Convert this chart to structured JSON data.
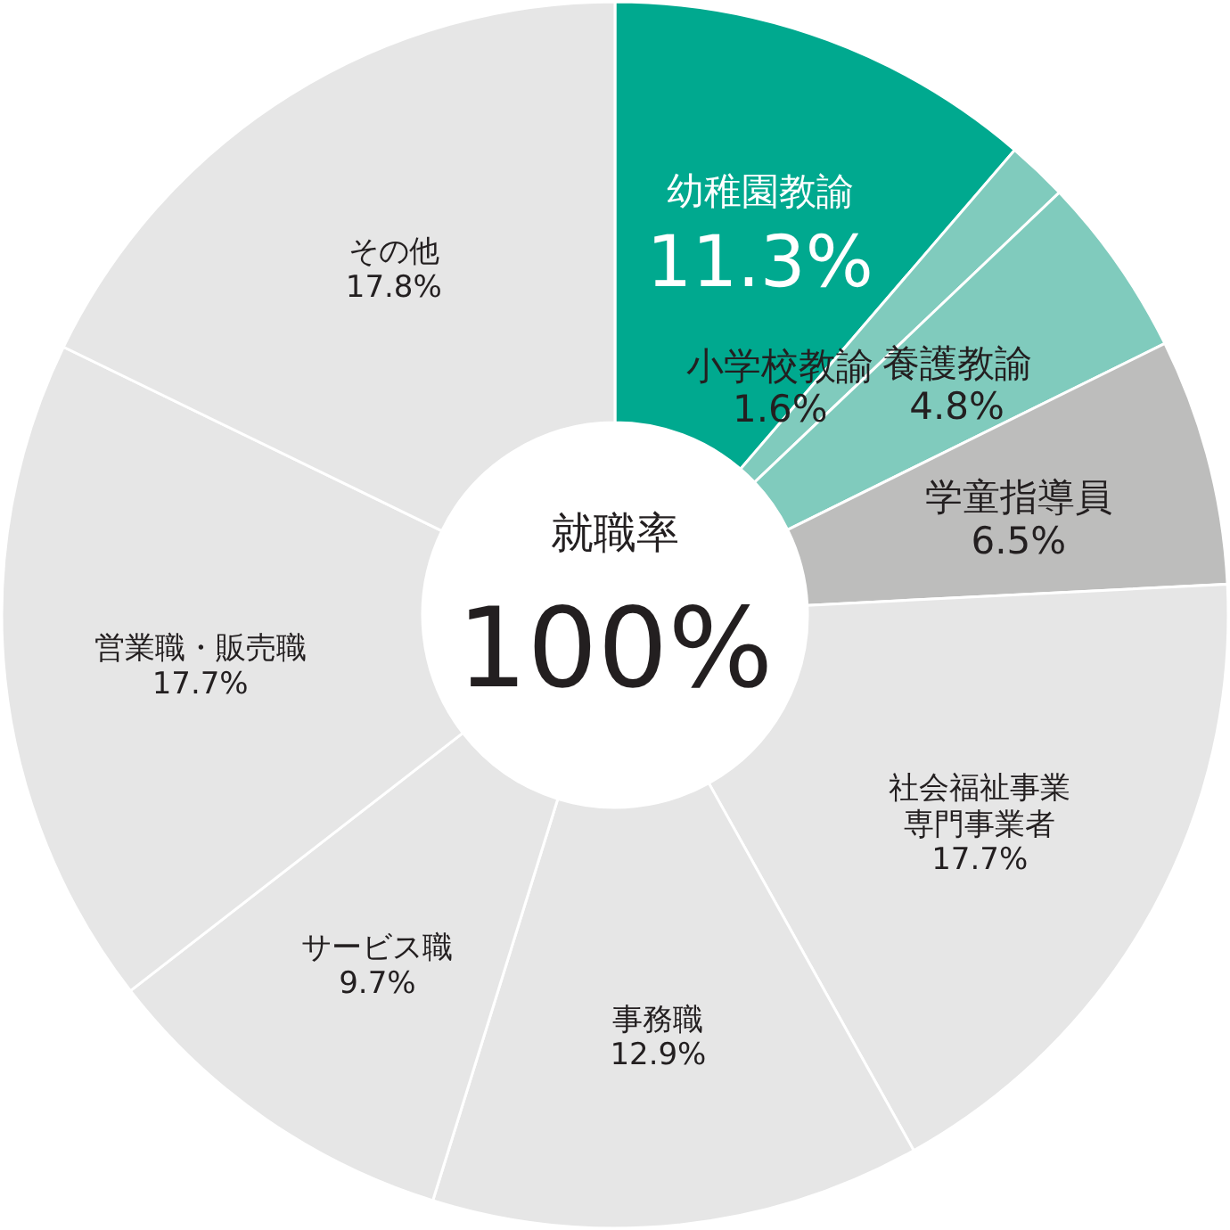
{
  "chart_data": {
    "type": "donut",
    "title": "就職率",
    "annotations": [
      "100%"
    ],
    "categories": [
      "幼稚園教諭",
      "小学校教諭",
      "養護教諭",
      "学童指導員",
      "社会福祉事業専門事業者",
      "事務職",
      "サービス職",
      "営業職・販売職",
      "その他"
    ],
    "values": [
      11.3,
      1.6,
      4.8,
      6.5,
      17.7,
      12.9,
      9.7,
      17.7,
      17.8
    ],
    "value_labels": [
      "11.3%",
      "1.6%",
      "4.8%",
      "6.5%",
      "17.7%",
      "12.9%",
      "9.7%",
      "17.7%",
      "17.8%"
    ],
    "colors": [
      "#00a98f",
      "#80cbbd",
      "#80cbbd",
      "#bdbdbc",
      "#e6e6e6",
      "#e6e6e6",
      "#e6e6e6",
      "#e6e6e6",
      "#e6e6e6"
    ]
  }
}
